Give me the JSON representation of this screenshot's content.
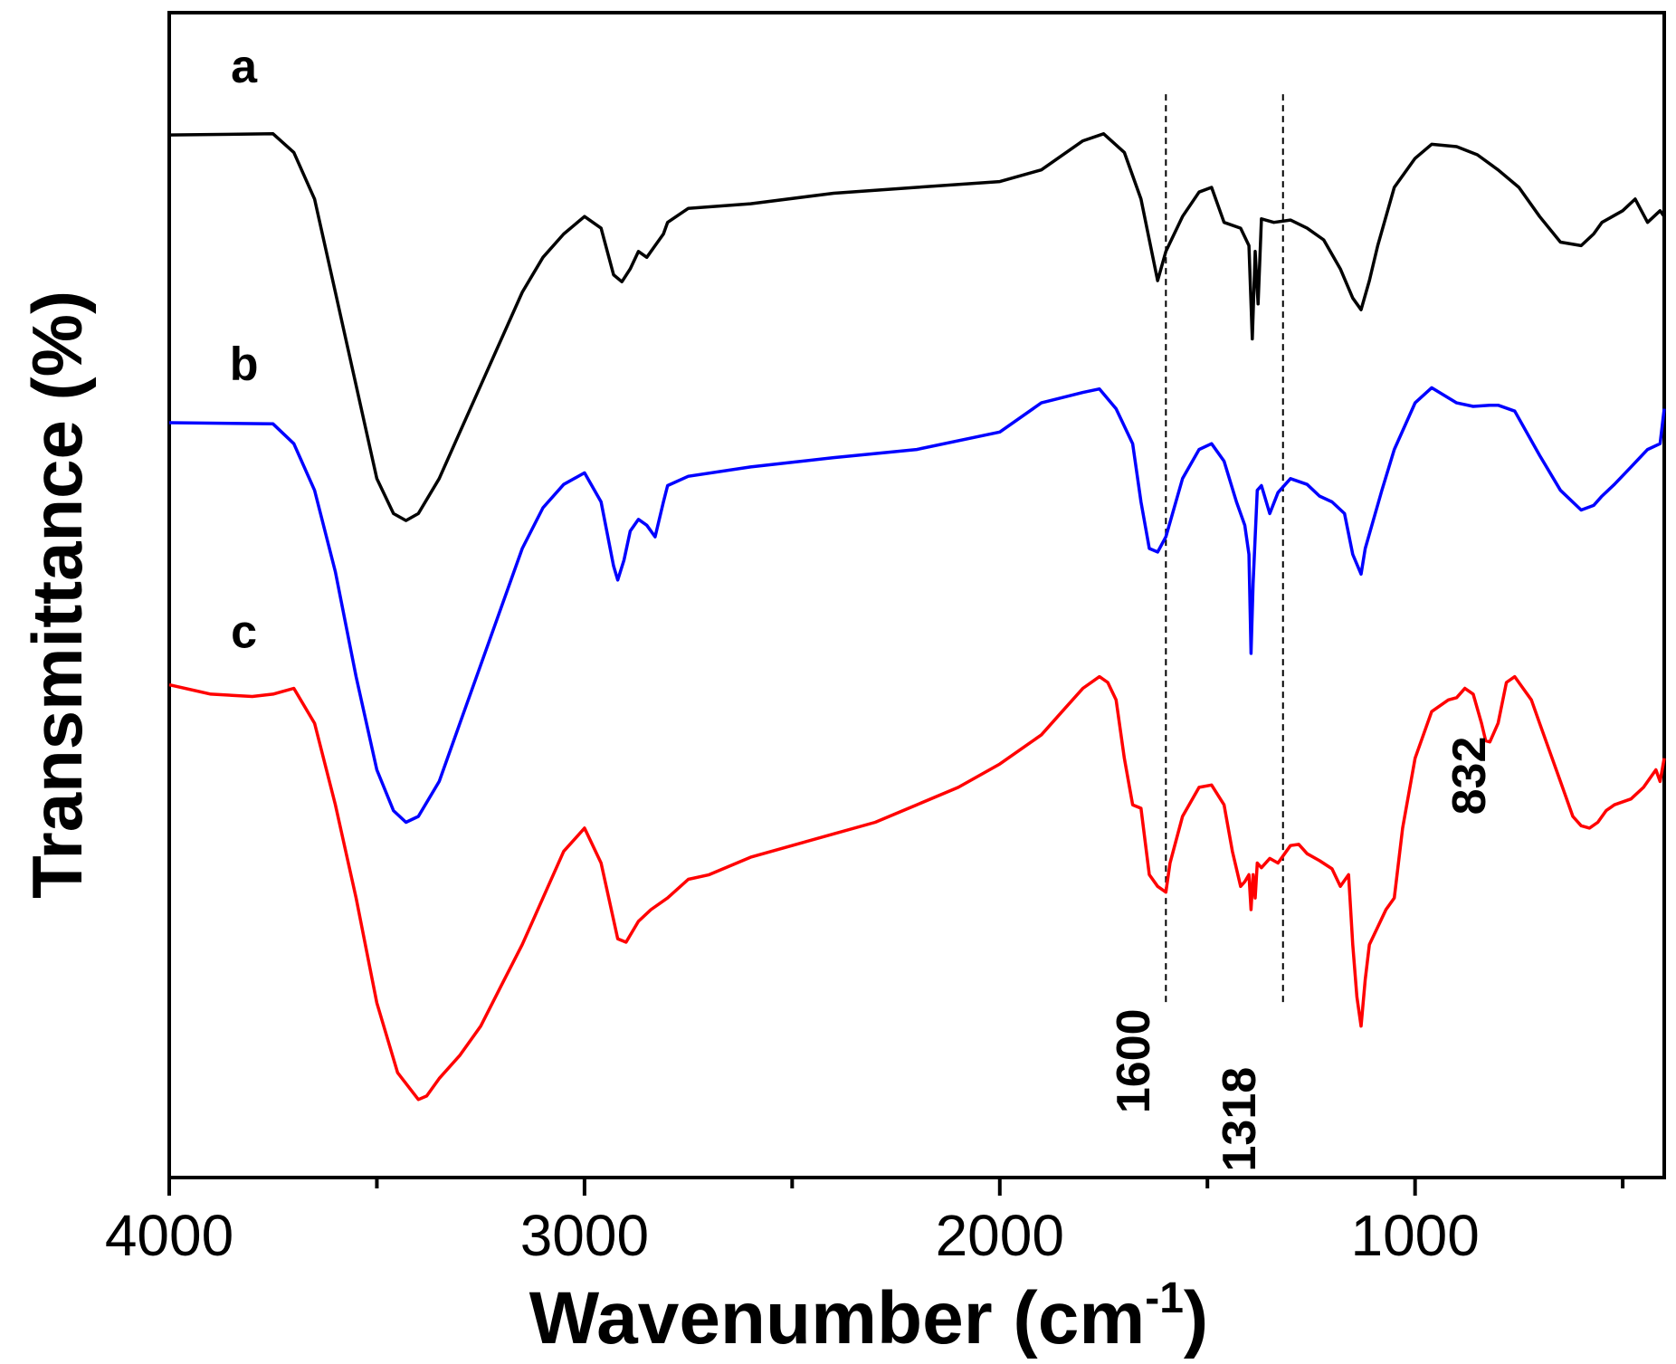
{
  "chart_data": {
    "type": "line",
    "title": "",
    "xlabel": "Wavenumber (cm",
    "xlabel_superscript": "-1",
    "xlabel_close": ")",
    "ylabel": "Transmittance (%)",
    "xlim": [
      4000,
      400
    ],
    "x_reversed": true,
    "ylim": [
      0,
      100
    ],
    "y_ticks_shown": false,
    "x_major_ticks": [
      4000,
      3000,
      2000,
      1000
    ],
    "x_minor_ticks": [
      3500,
      2500,
      1500,
      500
    ],
    "x_tick_labels": [
      "4000",
      "3000",
      "2000",
      "1000"
    ],
    "grid": false,
    "series": [
      {
        "name": "a",
        "color": "#000000",
        "label_pos": [
          3820,
          94
        ],
        "x": [
          4000,
          3750,
          3700,
          3650,
          3600,
          3550,
          3500,
          3460,
          3430,
          3400,
          3350,
          3300,
          3250,
          3200,
          3150,
          3100,
          3050,
          3000,
          2960,
          2930,
          2910,
          2890,
          2870,
          2850,
          2830,
          2810,
          2800,
          2750,
          2600,
          2400,
          2200,
          2000,
          1900,
          1800,
          1750,
          1700,
          1660,
          1640,
          1620,
          1600,
          1560,
          1520,
          1490,
          1460,
          1420,
          1400,
          1392,
          1385,
          1378,
          1370,
          1340,
          1300,
          1260,
          1220,
          1180,
          1150,
          1130,
          1110,
          1090,
          1050,
          1000,
          960,
          900,
          850,
          800,
          750,
          700,
          650,
          600,
          570,
          550,
          500,
          470,
          440,
          410,
          400
        ],
        "y": [
          89.5,
          89.6,
          88,
          84,
          76,
          68,
          60,
          57,
          56.4,
          57,
          60,
          64,
          68,
          72,
          76,
          79,
          81,
          82.5,
          81.5,
          77.5,
          76.9,
          78,
          79.5,
          79,
          80,
          81,
          82,
          83.2,
          83.6,
          84.5,
          85,
          85.5,
          86.5,
          89,
          89.6,
          88,
          84,
          80.5,
          77,
          79.5,
          82.5,
          84.6,
          85,
          82,
          81.5,
          80,
          72,
          79.5,
          75,
          82.3,
          82,
          82.2,
          81.5,
          80.5,
          78,
          75.5,
          74.5,
          77,
          80,
          85,
          87.5,
          88.7,
          88.5,
          87.8,
          86.5,
          85,
          82.5,
          80.3,
          80,
          81,
          82,
          83,
          84,
          82,
          83,
          82.5
        ]
      },
      {
        "name": "b",
        "color": "#0000ff",
        "label_pos": [
          3820,
          68.5
        ],
        "x": [
          4000,
          3750,
          3700,
          3650,
          3600,
          3550,
          3500,
          3460,
          3430,
          3400,
          3350,
          3300,
          3250,
          3200,
          3150,
          3100,
          3050,
          3000,
          2960,
          2930,
          2920,
          2905,
          2890,
          2870,
          2850,
          2830,
          2810,
          2800,
          2750,
          2600,
          2400,
          2200,
          2000,
          1900,
          1800,
          1760,
          1720,
          1680,
          1660,
          1640,
          1620,
          1600,
          1560,
          1520,
          1490,
          1460,
          1430,
          1410,
          1400,
          1395,
          1390,
          1385,
          1380,
          1370,
          1350,
          1330,
          1300,
          1260,
          1230,
          1200,
          1170,
          1150,
          1130,
          1120,
          1100,
          1080,
          1050,
          1000,
          960,
          900,
          860,
          820,
          800,
          760,
          700,
          650,
          600,
          570,
          550,
          520,
          480,
          440,
          410,
          400
        ],
        "y": [
          64.8,
          64.7,
          63,
          59,
          52,
          43,
          35,
          31.5,
          30.5,
          31,
          34,
          39,
          44,
          49,
          54,
          57.5,
          59.5,
          60.5,
          58,
          52.5,
          51.3,
          53,
          55.5,
          56.5,
          56,
          55,
          58,
          59.4,
          60.2,
          61,
          61.8,
          62.5,
          64,
          66.5,
          67.4,
          67.7,
          66,
          63,
          58,
          54,
          53.7,
          55,
          60,
          62.5,
          63,
          61.5,
          58,
          56,
          53.5,
          45,
          51,
          55,
          59,
          59.4,
          57,
          58.8,
          60,
          59.5,
          58.5,
          58,
          57,
          53.5,
          51.8,
          54,
          56.5,
          59,
          62.5,
          66.5,
          67.8,
          66.5,
          66.2,
          66.3,
          66.3,
          65.8,
          62,
          59,
          57.3,
          57.7,
          58.5,
          59.5,
          61,
          62.5,
          63,
          66
        ]
      },
      {
        "name": "c",
        "color": "#ff0000",
        "label_pos": [
          3820,
          45.5
        ],
        "x": [
          4000,
          3900,
          3800,
          3750,
          3700,
          3650,
          3600,
          3550,
          3500,
          3450,
          3400,
          3380,
          3350,
          3300,
          3250,
          3200,
          3150,
          3100,
          3050,
          3000,
          2960,
          2920,
          2900,
          2870,
          2840,
          2800,
          2750,
          2700,
          2600,
          2500,
          2400,
          2300,
          2200,
          2100,
          2000,
          1900,
          1850,
          1800,
          1760,
          1740,
          1720,
          1700,
          1680,
          1660,
          1640,
          1620,
          1600,
          1590,
          1560,
          1520,
          1490,
          1460,
          1440,
          1420,
          1410,
          1400,
          1395,
          1390,
          1385,
          1380,
          1370,
          1350,
          1330,
          1300,
          1280,
          1260,
          1230,
          1200,
          1180,
          1160,
          1150,
          1140,
          1130,
          1120,
          1110,
          1090,
          1070,
          1050,
          1030,
          1000,
          960,
          920,
          900,
          880,
          860,
          840,
          830,
          820,
          800,
          780,
          760,
          740,
          720,
          700,
          680,
          650,
          640,
          620,
          600,
          580,
          560,
          540,
          520,
          480,
          450,
          420,
          410,
          400
        ],
        "y": [
          42.3,
          41.5,
          41.3,
          41.5,
          42,
          39,
          32,
          24,
          15,
          9,
          6.7,
          7,
          8.5,
          10.5,
          13,
          16.5,
          20,
          24,
          28,
          30,
          27,
          20.5,
          20.2,
          22,
          23,
          24,
          25.6,
          26,
          27.5,
          28.5,
          29.5,
          30.5,
          32,
          33.5,
          35.5,
          38,
          40,
          42,
          43,
          42.5,
          41,
          36,
          32,
          31.7,
          26,
          25,
          24.5,
          27,
          31,
          33.5,
          33.7,
          32,
          28,
          25,
          25.4,
          26,
          23,
          26,
          24,
          27,
          26.6,
          27.4,
          27,
          28.5,
          28.6,
          27.8,
          27.2,
          26.5,
          25,
          26,
          20,
          15.5,
          13,
          17,
          20,
          21.5,
          23,
          24,
          30,
          36,
          40,
          41,
          41.2,
          42,
          41.5,
          39,
          37.5,
          37.4,
          39,
          42.5,
          43,
          42,
          41,
          39,
          37,
          34,
          33,
          31,
          30.2,
          30,
          30.5,
          31.5,
          32,
          32.5,
          33.5,
          35,
          34,
          36
        ]
      }
    ],
    "reference_lines": [
      {
        "x": 1600,
        "style": "dashed"
      },
      {
        "x": 1318,
        "style": "dashed"
      }
    ],
    "annotations": [
      {
        "text": "1600",
        "x": 1640,
        "y": 10,
        "rotation": -90
      },
      {
        "text": "1318",
        "x": 1385,
        "y": 5,
        "rotation": -90
      },
      {
        "text": "832",
        "x": 832,
        "y": 34.5,
        "rotation": -90
      }
    ]
  }
}
